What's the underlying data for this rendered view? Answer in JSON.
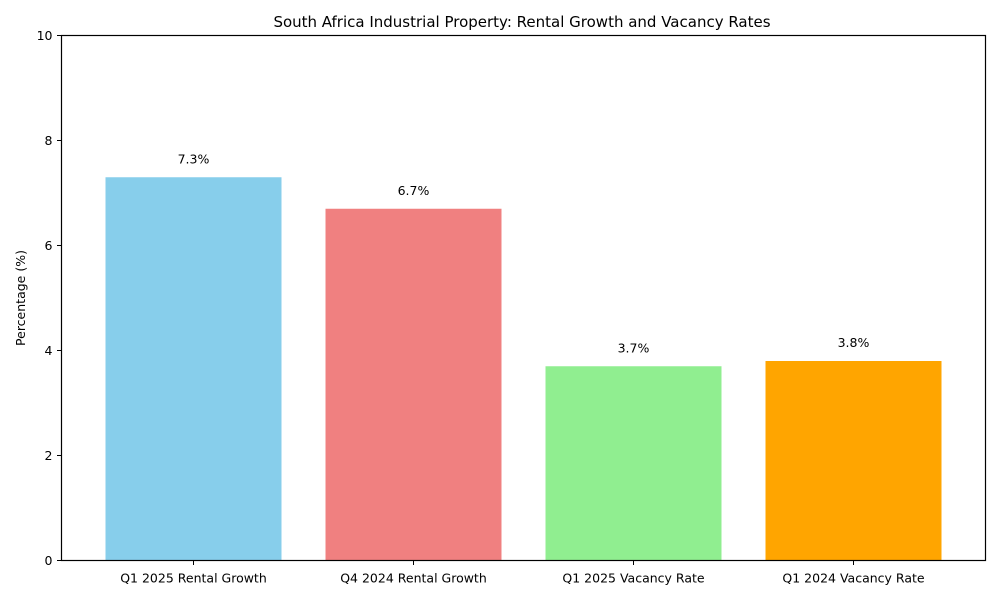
{
  "chart_data": {
    "type": "bar",
    "title": "South Africa Industrial Property: Rental Growth and Vacancy Rates",
    "xlabel": "",
    "ylabel": "Percentage (%)",
    "ylim": [
      0,
      10
    ],
    "yticks": [
      0,
      2,
      4,
      6,
      8,
      10
    ],
    "grid": false,
    "categories": [
      "Q1 2025 Rental Growth",
      "Q4 2024 Rental Growth",
      "Q1 2025 Vacancy Rate",
      "Q1 2024 Vacancy Rate"
    ],
    "values": [
      7.3,
      6.7,
      3.7,
      3.8
    ],
    "data_labels": [
      "7.3%",
      "6.7%",
      "3.7%",
      "3.8%"
    ],
    "colors": [
      "#87ceeb",
      "#f08080",
      "#90ee90",
      "#ffa500"
    ]
  }
}
